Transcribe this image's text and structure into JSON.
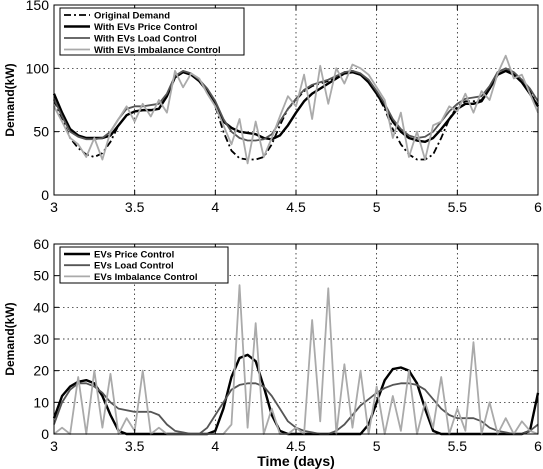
{
  "chart_data": [
    {
      "type": "line",
      "title": "",
      "xlabel": "",
      "ylabel": "Demand(kW)",
      "xlim": [
        3,
        6
      ],
      "ylim": [
        0,
        150
      ],
      "xticks": [
        3,
        3.5,
        4,
        4.5,
        5,
        5.5,
        6
      ],
      "yticks": [
        0,
        50,
        100,
        150
      ],
      "grid": true,
      "legend_position": "top-left",
      "series": [
        {
          "name": "Original Demand",
          "color": "#000000",
          "style": "dashdot",
          "x": [
            3,
            3.05,
            3.1,
            3.15,
            3.2,
            3.25,
            3.3,
            3.35,
            3.4,
            3.45,
            3.5,
            3.55,
            3.6,
            3.65,
            3.7,
            3.75,
            3.8,
            3.85,
            3.9,
            3.95,
            4,
            4.05,
            4.1,
            4.15,
            4.2,
            4.25,
            4.3,
            4.35,
            4.4,
            4.45,
            4.5,
            4.55,
            4.6,
            4.65,
            4.7,
            4.75,
            4.8,
            4.85,
            4.9,
            4.95,
            5,
            5.05,
            5.1,
            5.15,
            5.2,
            5.25,
            5.3,
            5.35,
            5.4,
            5.45,
            5.5,
            5.55,
            5.6,
            5.65,
            5.7,
            5.75,
            5.8,
            5.85,
            5.9,
            5.95,
            6
          ],
          "values": [
            75,
            60,
            45,
            37,
            32,
            30,
            33,
            42,
            55,
            63,
            66,
            67,
            67,
            68,
            78,
            93,
            97,
            95,
            90,
            82,
            70,
            50,
            35,
            29,
            28,
            28,
            30,
            40,
            55,
            68,
            75,
            82,
            86,
            88,
            90,
            93,
            97,
            98,
            95,
            90,
            80,
            68,
            52,
            40,
            32,
            28,
            28,
            32,
            45,
            60,
            70,
            74,
            74,
            75,
            85,
            97,
            100,
            96,
            90,
            82,
            70
          ]
        },
        {
          "name": "With EVs Price Control",
          "color": "#000000",
          "style": "solid-thick",
          "x": [
            3,
            3.05,
            3.1,
            3.15,
            3.2,
            3.25,
            3.3,
            3.35,
            3.4,
            3.45,
            3.5,
            3.55,
            3.6,
            3.65,
            3.7,
            3.75,
            3.8,
            3.85,
            3.9,
            3.95,
            4,
            4.05,
            4.1,
            4.15,
            4.2,
            4.25,
            4.3,
            4.35,
            4.4,
            4.45,
            4.5,
            4.55,
            4.6,
            4.65,
            4.7,
            4.75,
            4.8,
            4.85,
            4.9,
            4.95,
            5,
            5.05,
            5.1,
            5.15,
            5.2,
            5.25,
            5.3,
            5.35,
            5.4,
            5.45,
            5.5,
            5.55,
            5.6,
            5.65,
            5.7,
            5.75,
            5.8,
            5.85,
            5.9,
            5.95,
            6
          ],
          "values": [
            80,
            65,
            52,
            47,
            45,
            45,
            45,
            47,
            55,
            63,
            66,
            67,
            67,
            68,
            78,
            93,
            97,
            95,
            90,
            82,
            72,
            58,
            53,
            50,
            49,
            48,
            45,
            44,
            47,
            55,
            65,
            74,
            80,
            84,
            88,
            92,
            96,
            97,
            95,
            89,
            80,
            70,
            58,
            50,
            45,
            43,
            42,
            45,
            52,
            60,
            68,
            72,
            72,
            74,
            84,
            95,
            98,
            95,
            89,
            80,
            70
          ]
        },
        {
          "name": "With EVs Load Control",
          "color": "#555555",
          "style": "solid",
          "x": [
            3,
            3.05,
            3.1,
            3.15,
            3.2,
            3.25,
            3.3,
            3.35,
            3.4,
            3.45,
            3.5,
            3.55,
            3.6,
            3.65,
            3.7,
            3.75,
            3.8,
            3.85,
            3.9,
            3.95,
            4,
            4.05,
            4.1,
            4.15,
            4.2,
            4.25,
            4.3,
            4.35,
            4.4,
            4.45,
            4.5,
            4.55,
            4.6,
            4.65,
            4.7,
            4.75,
            4.8,
            4.85,
            4.9,
            4.95,
            5,
            5.05,
            5.1,
            5.15,
            5.2,
            5.25,
            5.3,
            5.35,
            5.4,
            5.45,
            5.5,
            5.55,
            5.6,
            5.65,
            5.7,
            5.75,
            5.8,
            5.85,
            5.9,
            5.95,
            6
          ],
          "values": [
            76,
            62,
            50,
            46,
            44,
            44,
            45,
            50,
            60,
            68,
            70,
            70,
            71,
            72,
            80,
            94,
            98,
            96,
            91,
            84,
            74,
            60,
            50,
            45,
            43,
            43,
            44,
            48,
            58,
            68,
            76,
            83,
            87,
            89,
            91,
            94,
            97,
            98,
            96,
            91,
            82,
            72,
            60,
            52,
            47,
            45,
            46,
            50,
            58,
            66,
            72,
            76,
            77,
            78,
            86,
            97,
            100,
            97,
            91,
            84,
            74
          ]
        },
        {
          "name": "With EVs Imbalance Control",
          "color": "#aaaaaa",
          "style": "solid",
          "x": [
            3,
            3.05,
            3.1,
            3.15,
            3.2,
            3.25,
            3.3,
            3.35,
            3.4,
            3.45,
            3.5,
            3.55,
            3.6,
            3.65,
            3.7,
            3.75,
            3.8,
            3.85,
            3.9,
            3.95,
            4,
            4.05,
            4.1,
            4.15,
            4.2,
            4.25,
            4.3,
            4.35,
            4.4,
            4.45,
            4.5,
            4.55,
            4.6,
            4.65,
            4.7,
            4.75,
            4.8,
            4.85,
            4.9,
            4.95,
            5,
            5.05,
            5.1,
            5.15,
            5.2,
            5.25,
            5.3,
            5.35,
            5.4,
            5.45,
            5.5,
            5.55,
            5.6,
            5.65,
            5.7,
            5.75,
            5.8,
            5.85,
            5.9,
            5.95,
            6
          ],
          "values": [
            70,
            58,
            45,
            40,
            30,
            45,
            28,
            50,
            60,
            70,
            58,
            72,
            62,
            75,
            65,
            98,
            85,
            96,
            92,
            80,
            70,
            55,
            40,
            60,
            25,
            58,
            30,
            45,
            62,
            78,
            70,
            95,
            60,
            102,
            72,
            100,
            88,
            103,
            100,
            95,
            85,
            75,
            45,
            65,
            30,
            50,
            28,
            55,
            58,
            70,
            66,
            80,
            65,
            82,
            75,
            96,
            110,
            92,
            95,
            80,
            65
          ]
        }
      ]
    },
    {
      "type": "line",
      "title": "",
      "xlabel": "Time (days)",
      "ylabel": "Demand(kW)",
      "xlim": [
        3,
        6
      ],
      "ylim": [
        0,
        60
      ],
      "xticks": [
        3,
        3.5,
        4,
        4.5,
        5,
        5.5,
        6
      ],
      "yticks": [
        0,
        10,
        20,
        30,
        40,
        50,
        60
      ],
      "grid": true,
      "legend_position": "top-left",
      "series": [
        {
          "name": "EVs Price Control",
          "color": "#000000",
          "style": "solid-thick",
          "x": [
            3,
            3.05,
            3.1,
            3.15,
            3.2,
            3.25,
            3.3,
            3.35,
            3.4,
            3.45,
            3.5,
            3.55,
            3.6,
            3.65,
            3.7,
            3.75,
            3.8,
            3.85,
            3.9,
            3.95,
            4,
            4.05,
            4.1,
            4.15,
            4.2,
            4.25,
            4.3,
            4.35,
            4.4,
            4.45,
            4.5,
            4.55,
            4.6,
            4.65,
            4.7,
            4.75,
            4.8,
            4.85,
            4.9,
            4.95,
            5,
            5.05,
            5.1,
            5.15,
            5.2,
            5.25,
            5.3,
            5.35,
            5.4,
            5.45,
            5.5,
            5.55,
            5.6,
            5.65,
            5.7,
            5.75,
            5.8,
            5.85,
            5.9,
            5.95,
            6
          ],
          "values": [
            5,
            12,
            15,
            16.5,
            17,
            16,
            12,
            6,
            1,
            0,
            0,
            0,
            0,
            0,
            0,
            0,
            0,
            0,
            0,
            0,
            1,
            8,
            18,
            24,
            25,
            23,
            15,
            6,
            1,
            0,
            0,
            0,
            0,
            0,
            0,
            0,
            0,
            0,
            0,
            3,
            10,
            17,
            20.5,
            21,
            20,
            16,
            8,
            1,
            0,
            0,
            0,
            0,
            0,
            0,
            0,
            0,
            0,
            0,
            0,
            1,
            13
          ]
        },
        {
          "name": "EVs Load Control",
          "color": "#555555",
          "style": "solid",
          "x": [
            3,
            3.05,
            3.1,
            3.15,
            3.2,
            3.25,
            3.3,
            3.35,
            3.4,
            3.45,
            3.5,
            3.55,
            3.6,
            3.65,
            3.7,
            3.75,
            3.8,
            3.85,
            3.9,
            3.95,
            4,
            4.05,
            4.1,
            4.15,
            4.2,
            4.25,
            4.3,
            4.35,
            4.4,
            4.45,
            4.5,
            4.55,
            4.6,
            4.65,
            4.7,
            4.75,
            4.8,
            4.85,
            4.9,
            4.95,
            5,
            5.05,
            5.1,
            5.15,
            5.2,
            5.25,
            5.3,
            5.35,
            5.4,
            5.45,
            5.5,
            5.55,
            5.6,
            5.65,
            5.7,
            5.75,
            5.8,
            5.85,
            5.9,
            5.95,
            6
          ],
          "values": [
            3,
            10,
            14,
            16,
            16,
            15,
            13,
            10,
            8,
            7.5,
            7,
            7,
            7,
            6,
            3,
            1,
            0.5,
            0,
            0,
            2,
            6,
            10,
            14,
            15.5,
            16,
            16,
            15,
            12,
            8,
            4,
            2,
            1,
            0.5,
            0,
            0,
            1,
            3,
            6,
            9,
            11,
            13,
            14.5,
            15.5,
            16,
            16,
            15.5,
            14,
            11,
            8,
            6,
            5,
            5,
            5,
            4,
            2,
            1,
            0.5,
            0,
            0,
            1,
            3
          ]
        },
        {
          "name": "EVs Imbalance Control",
          "color": "#aaaaaa",
          "style": "solid",
          "x": [
            3,
            3.05,
            3.1,
            3.15,
            3.2,
            3.25,
            3.3,
            3.35,
            3.4,
            3.45,
            3.5,
            3.55,
            3.6,
            3.65,
            3.7,
            3.75,
            3.8,
            3.85,
            3.9,
            3.95,
            4,
            4.05,
            4.1,
            4.15,
            4.2,
            4.25,
            4.3,
            4.35,
            4.4,
            4.45,
            4.5,
            4.55,
            4.6,
            4.65,
            4.7,
            4.75,
            4.8,
            4.85,
            4.9,
            4.95,
            5,
            5.05,
            5.1,
            5.15,
            5.2,
            5.25,
            5.3,
            5.35,
            5.4,
            5.45,
            5.5,
            5.55,
            5.6,
            5.65,
            5.7,
            5.75,
            5.8,
            5.85,
            5.9,
            5.95,
            6
          ],
          "values": [
            0,
            2,
            0,
            18,
            0,
            20,
            2,
            19,
            0,
            5,
            1,
            20,
            0,
            2,
            0,
            0,
            0,
            0,
            0,
            0,
            0,
            0,
            3,
            47,
            2,
            35,
            0,
            8,
            0,
            0,
            2,
            0,
            36,
            4,
            46,
            0,
            22,
            2,
            20,
            0,
            15,
            0,
            12,
            1,
            20,
            0,
            10,
            2,
            18,
            0,
            8,
            1,
            29,
            0,
            10,
            0,
            5,
            0,
            4,
            1,
            0
          ]
        }
      ]
    }
  ]
}
